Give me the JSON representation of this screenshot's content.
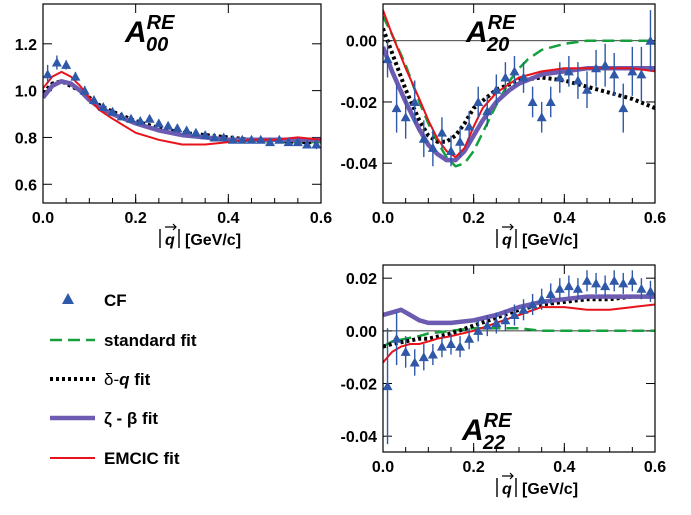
{
  "chart_data": [
    {
      "type": "line",
      "panel_label": {
        "main": "A",
        "sup": "RE",
        "sub": "00"
      },
      "xlabel": "|q| [GeV/c]",
      "xlim": [
        0,
        0.6
      ],
      "ylim": [
        0.52,
        1.37
      ],
      "xticks": [
        0.0,
        0.2,
        0.4,
        0.6
      ],
      "xtick_labels": [
        "0.0",
        "0.2",
        "0.4",
        "0.6"
      ],
      "yticks": [
        0.6,
        0.8,
        1.0,
        1.2
      ],
      "ytick_labels": [
        "0.6",
        "0.8",
        "1.0",
        "1.2"
      ],
      "ref_line": null,
      "points": {
        "name": "CF",
        "x": [
          0.01,
          0.03,
          0.05,
          0.07,
          0.09,
          0.11,
          0.13,
          0.15,
          0.17,
          0.19,
          0.21,
          0.23,
          0.25,
          0.27,
          0.29,
          0.31,
          0.33,
          0.35,
          0.37,
          0.39,
          0.41,
          0.43,
          0.45,
          0.47,
          0.49,
          0.51,
          0.53,
          0.55,
          0.57,
          0.59
        ],
        "y": [
          1.07,
          1.12,
          1.11,
          1.06,
          1.0,
          0.96,
          0.93,
          0.91,
          0.89,
          0.88,
          0.87,
          0.88,
          0.86,
          0.85,
          0.84,
          0.83,
          0.82,
          0.81,
          0.8,
          0.8,
          0.79,
          0.79,
          0.79,
          0.79,
          0.78,
          0.79,
          0.78,
          0.78,
          0.77,
          0.77
        ],
        "err": [
          0.04,
          0.03,
          0.02,
          0.02,
          0.02,
          0.015,
          0.015,
          0.015,
          0.015,
          0.015,
          0.015,
          0.015,
          0.015,
          0.015,
          0.015,
          0.015,
          0.015,
          0.015,
          0.015,
          0.015,
          0.015,
          0.015,
          0.015,
          0.015,
          0.015,
          0.015,
          0.015,
          0.015,
          0.015,
          0.02
        ]
      },
      "series": [
        {
          "key": "standard",
          "x": [
            0,
            0.02,
            0.04,
            0.06,
            0.08,
            0.1,
            0.12,
            0.15,
            0.2,
            0.25,
            0.3,
            0.35,
            0.4,
            0.45,
            0.5,
            0.55,
            0.6
          ],
          "y": [
            0.98,
            1.02,
            1.04,
            1.03,
            1.0,
            0.96,
            0.93,
            0.9,
            0.86,
            0.83,
            0.81,
            0.8,
            0.79,
            0.79,
            0.78,
            0.78,
            0.78
          ]
        },
        {
          "key": "delta",
          "x": [
            0,
            0.02,
            0.04,
            0.06,
            0.08,
            0.1,
            0.12,
            0.15,
            0.2,
            0.25,
            0.3,
            0.35,
            0.4,
            0.45,
            0.5,
            0.55,
            0.6
          ],
          "y": [
            0.99,
            1.03,
            1.04,
            1.02,
            1.0,
            0.97,
            0.94,
            0.91,
            0.87,
            0.84,
            0.82,
            0.81,
            0.8,
            0.79,
            0.79,
            0.78,
            0.78
          ]
        },
        {
          "key": "zeta",
          "x": [
            0,
            0.02,
            0.04,
            0.06,
            0.08,
            0.1,
            0.12,
            0.15,
            0.2,
            0.25,
            0.3,
            0.35,
            0.4,
            0.45,
            0.5,
            0.55,
            0.6
          ],
          "y": [
            0.97,
            1.02,
            1.04,
            1.03,
            1.0,
            0.96,
            0.93,
            0.9,
            0.86,
            0.83,
            0.81,
            0.8,
            0.79,
            0.79,
            0.79,
            0.79,
            0.79
          ]
        },
        {
          "key": "emcic",
          "x": [
            0,
            0.02,
            0.04,
            0.06,
            0.08,
            0.1,
            0.12,
            0.15,
            0.2,
            0.25,
            0.3,
            0.35,
            0.4,
            0.45,
            0.5,
            0.55,
            0.6
          ],
          "y": [
            1.01,
            1.06,
            1.08,
            1.06,
            1.02,
            0.97,
            0.92,
            0.88,
            0.82,
            0.79,
            0.77,
            0.77,
            0.78,
            0.79,
            0.79,
            0.8,
            0.79
          ]
        }
      ]
    },
    {
      "type": "line",
      "panel_label": {
        "main": "A",
        "sup": "RE",
        "sub": "20"
      },
      "xlabel": "|q| [GeV/c]",
      "xlim": [
        0,
        0.6
      ],
      "ylim": [
        -0.053,
        0.012
      ],
      "xticks": [
        0.0,
        0.2,
        0.4,
        0.6
      ],
      "xtick_labels": [
        "0.0",
        "0.2",
        "0.4",
        "0.6"
      ],
      "yticks": [
        -0.04,
        -0.02,
        0.0
      ],
      "ytick_labels": [
        "-0.04",
        "-0.02",
        "0.00"
      ],
      "ref_line": 0,
      "points": {
        "name": "CF",
        "x": [
          0.01,
          0.03,
          0.05,
          0.07,
          0.09,
          0.11,
          0.13,
          0.15,
          0.17,
          0.19,
          0.21,
          0.23,
          0.25,
          0.27,
          0.29,
          0.31,
          0.33,
          0.35,
          0.37,
          0.39,
          0.41,
          0.43,
          0.45,
          0.47,
          0.49,
          0.51,
          0.53,
          0.55,
          0.57,
          0.59
        ],
        "y": [
          -0.006,
          -0.022,
          -0.025,
          -0.02,
          -0.032,
          -0.035,
          -0.03,
          -0.036,
          -0.033,
          -0.028,
          -0.02,
          -0.023,
          -0.016,
          -0.012,
          -0.01,
          -0.012,
          -0.02,
          -0.025,
          -0.02,
          -0.012,
          -0.01,
          -0.013,
          -0.016,
          -0.009,
          -0.008,
          -0.011,
          -0.022,
          -0.01,
          -0.011,
          0.0
        ],
        "err": [
          0.006,
          0.008,
          0.007,
          0.007,
          0.006,
          0.006,
          0.005,
          0.005,
          0.005,
          0.005,
          0.005,
          0.005,
          0.005,
          0.005,
          0.005,
          0.005,
          0.005,
          0.005,
          0.005,
          0.005,
          0.005,
          0.006,
          0.006,
          0.006,
          0.007,
          0.007,
          0.008,
          0.008,
          0.009,
          0.01
        ]
      },
      "series": [
        {
          "key": "standard",
          "x": [
            0,
            0.02,
            0.05,
            0.08,
            0.1,
            0.12,
            0.14,
            0.16,
            0.18,
            0.2,
            0.22,
            0.25,
            0.28,
            0.3,
            0.32,
            0.35,
            0.4,
            0.45,
            0.5,
            0.55,
            0.6
          ],
          "y": [
            0.008,
            0.002,
            -0.008,
            -0.02,
            -0.027,
            -0.033,
            -0.038,
            -0.041,
            -0.04,
            -0.036,
            -0.03,
            -0.021,
            -0.013,
            -0.009,
            -0.006,
            -0.003,
            -0.001,
            0.0,
            0.0,
            0.0,
            0.0
          ]
        },
        {
          "key": "delta",
          "x": [
            0,
            0.02,
            0.05,
            0.08,
            0.1,
            0.12,
            0.14,
            0.16,
            0.18,
            0.2,
            0.25,
            0.3,
            0.35,
            0.4,
            0.45,
            0.5,
            0.55,
            0.6
          ],
          "y": [
            0.004,
            -0.004,
            -0.016,
            -0.026,
            -0.031,
            -0.033,
            -0.033,
            -0.031,
            -0.027,
            -0.022,
            -0.016,
            -0.013,
            -0.012,
            -0.013,
            -0.015,
            -0.017,
            -0.019,
            -0.022
          ]
        },
        {
          "key": "zeta",
          "x": [
            0,
            0.02,
            0.05,
            0.08,
            0.1,
            0.12,
            0.14,
            0.16,
            0.18,
            0.2,
            0.22,
            0.25,
            0.28,
            0.3,
            0.35,
            0.4,
            0.45,
            0.5,
            0.55,
            0.6
          ],
          "y": [
            -0.002,
            -0.01,
            -0.02,
            -0.029,
            -0.034,
            -0.037,
            -0.039,
            -0.039,
            -0.036,
            -0.031,
            -0.026,
            -0.02,
            -0.016,
            -0.014,
            -0.011,
            -0.01,
            -0.009,
            -0.009,
            -0.009,
            -0.009
          ]
        },
        {
          "key": "emcic",
          "x": [
            0,
            0.02,
            0.05,
            0.08,
            0.1,
            0.12,
            0.14,
            0.16,
            0.18,
            0.2,
            0.22,
            0.25,
            0.28,
            0.3,
            0.35,
            0.4,
            0.45,
            0.5,
            0.55,
            0.6
          ],
          "y": [
            0.01,
            0.002,
            -0.009,
            -0.019,
            -0.026,
            -0.032,
            -0.036,
            -0.038,
            -0.035,
            -0.028,
            -0.022,
            -0.017,
            -0.014,
            -0.012,
            -0.01,
            -0.009,
            -0.009,
            -0.009,
            -0.009,
            -0.01
          ]
        }
      ]
    },
    {
      "type": "line",
      "panel_label": {
        "main": "A",
        "sup": "RE",
        "sub": "22"
      },
      "xlabel": "|q| [GeV/c]",
      "xlim": [
        0,
        0.6
      ],
      "ylim": [
        -0.046,
        0.025
      ],
      "xticks": [
        0.0,
        0.2,
        0.4,
        0.6
      ],
      "xtick_labels": [
        "0.0",
        "0.2",
        "0.4",
        "0.6"
      ],
      "yticks": [
        -0.04,
        -0.02,
        0.0,
        0.02
      ],
      "ytick_labels": [
        "-0.04",
        "-0.02",
        "0.00",
        "0.02"
      ],
      "ref_line": 0,
      "points": {
        "name": "CF",
        "x": [
          0.01,
          0.03,
          0.05,
          0.07,
          0.09,
          0.11,
          0.13,
          0.15,
          0.17,
          0.19,
          0.21,
          0.23,
          0.25,
          0.27,
          0.29,
          0.31,
          0.33,
          0.35,
          0.37,
          0.39,
          0.41,
          0.43,
          0.45,
          0.47,
          0.49,
          0.51,
          0.53,
          0.55,
          0.57,
          0.59
        ],
        "y": [
          -0.021,
          -0.003,
          -0.008,
          -0.012,
          -0.01,
          -0.009,
          -0.006,
          -0.005,
          -0.006,
          -0.003,
          0.0,
          0.002,
          0.003,
          0.004,
          0.006,
          0.008,
          0.01,
          0.012,
          0.014,
          0.016,
          0.017,
          0.016,
          0.019,
          0.018,
          0.017,
          0.019,
          0.018,
          0.019,
          0.016,
          0.015
        ],
        "err": [
          0.022,
          0.01,
          0.006,
          0.005,
          0.005,
          0.004,
          0.004,
          0.004,
          0.004,
          0.004,
          0.004,
          0.004,
          0.004,
          0.004,
          0.004,
          0.004,
          0.004,
          0.004,
          0.004,
          0.004,
          0.004,
          0.004,
          0.004,
          0.004,
          0.004,
          0.004,
          0.004,
          0.004,
          0.004,
          0.004
        ]
      },
      "series": [
        {
          "key": "standard",
          "x": [
            0,
            0.02,
            0.05,
            0.08,
            0.1,
            0.15,
            0.2,
            0.25,
            0.3,
            0.35,
            0.4,
            0.5,
            0.6
          ],
          "y": [
            -0.006,
            -0.004,
            -0.003,
            -0.002,
            -0.001,
            0.0,
            0.001,
            0.001,
            0.001,
            0.0,
            0.0,
            0.0,
            0.0
          ]
        },
        {
          "key": "delta",
          "x": [
            0,
            0.02,
            0.05,
            0.08,
            0.1,
            0.15,
            0.2,
            0.25,
            0.3,
            0.35,
            0.4,
            0.45,
            0.5,
            0.55,
            0.6
          ],
          "y": [
            -0.006,
            -0.005,
            -0.004,
            -0.003,
            -0.003,
            -0.001,
            0.002,
            0.005,
            0.008,
            0.01,
            0.011,
            0.012,
            0.012,
            0.013,
            0.013
          ]
        },
        {
          "key": "zeta",
          "x": [
            0,
            0.02,
            0.04,
            0.06,
            0.08,
            0.1,
            0.12,
            0.15,
            0.2,
            0.25,
            0.3,
            0.35,
            0.4,
            0.45,
            0.5,
            0.55,
            0.6
          ],
          "y": [
            0.006,
            0.007,
            0.008,
            0.006,
            0.004,
            0.003,
            0.003,
            0.003,
            0.004,
            0.006,
            0.009,
            0.011,
            0.012,
            0.013,
            0.013,
            0.013,
            0.013
          ]
        },
        {
          "key": "emcic",
          "x": [
            0,
            0.02,
            0.04,
            0.06,
            0.08,
            0.1,
            0.12,
            0.15,
            0.2,
            0.25,
            0.3,
            0.35,
            0.4,
            0.45,
            0.5,
            0.55,
            0.6
          ],
          "y": [
            -0.012,
            -0.008,
            -0.006,
            -0.005,
            -0.005,
            -0.004,
            -0.003,
            -0.002,
            0.0,
            0.003,
            0.006,
            0.009,
            0.009,
            0.008,
            0.008,
            0.009,
            0.01
          ]
        }
      ]
    }
  ],
  "legend": {
    "entries": [
      {
        "key": "cf",
        "kind": "marker",
        "label": "CF"
      },
      {
        "key": "standard",
        "kind": "line",
        "label": "standard fit"
      },
      {
        "key": "delta",
        "kind": "line",
        "label_prefix": "δ-",
        "label_italic": "q",
        "label_suffix": " fit"
      },
      {
        "key": "zeta",
        "kind": "line",
        "label": "ζ - β fit"
      },
      {
        "key": "emcic",
        "kind": "line",
        "label": "EMCIC fit"
      }
    ]
  },
  "styles": {
    "cf": {
      "color": "#2f58a8"
    },
    "standard": {
      "color": "#14a03c",
      "dash": "12,6",
      "width": 2.5
    },
    "delta": {
      "color": "#000000",
      "dash": "3,3",
      "width": 4
    },
    "zeta": {
      "color": "#6c5bb0",
      "dash": "",
      "width": 4.5
    },
    "emcic": {
      "color": "#e8121a",
      "dash": "",
      "width": 2
    }
  }
}
